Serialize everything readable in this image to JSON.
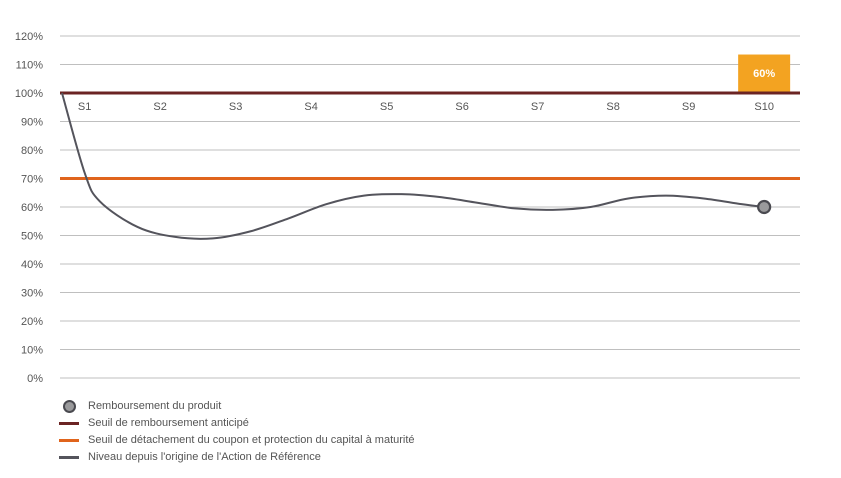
{
  "chart_data": {
    "type": "line",
    "y_ticks": [
      "0%",
      "10%",
      "20%",
      "30%",
      "40%",
      "50%",
      "60%",
      "70%",
      "80%",
      "90%",
      "100%",
      "110%",
      "120%"
    ],
    "ylim": [
      0,
      120
    ],
    "categories": [
      "S1",
      "S2",
      "S3",
      "S4",
      "S5",
      "S6",
      "S7",
      "S8",
      "S9",
      "S10"
    ],
    "series": [
      {
        "name": "Niveau depuis l'origine de l'Action de Référence",
        "color": "#54545c",
        "points": [
          {
            "x": 0.0,
            "y": 100
          },
          {
            "x": 0.3,
            "y": 72
          },
          {
            "x": 0.5,
            "y": 62
          },
          {
            "x": 1.0,
            "y": 53
          },
          {
            "x": 1.5,
            "y": 49.5
          },
          {
            "x": 2.0,
            "y": 49
          },
          {
            "x": 2.5,
            "y": 51.5
          },
          {
            "x": 3.0,
            "y": 56
          },
          {
            "x": 3.5,
            "y": 61
          },
          {
            "x": 4.0,
            "y": 64
          },
          {
            "x": 4.5,
            "y": 64.5
          },
          {
            "x": 5.0,
            "y": 63.5
          },
          {
            "x": 5.5,
            "y": 61.5
          },
          {
            "x": 6.0,
            "y": 59.5
          },
          {
            "x": 6.5,
            "y": 59
          },
          {
            "x": 7.0,
            "y": 60
          },
          {
            "x": 7.5,
            "y": 63
          },
          {
            "x": 8.0,
            "y": 64
          },
          {
            "x": 8.5,
            "y": 63
          },
          {
            "x": 9.0,
            "y": 61
          },
          {
            "x": 9.3,
            "y": 60
          }
        ]
      }
    ],
    "thresholds": [
      {
        "name": "Seuil de remboursement anticipé",
        "value": 100,
        "color": "#6b2423"
      },
      {
        "name": "Seuil de détachement du coupon et protection du capital à maturité",
        "value": 70,
        "color": "#e0641c"
      }
    ],
    "marker": {
      "name": "Remboursement du produit",
      "x": 9.3,
      "y": 60,
      "fill": "#9a9a9c",
      "stroke": "#4a4a50"
    },
    "callout": {
      "label": "60%",
      "category": "S10",
      "color": "#f3a321",
      "text_color": "#ffffff"
    },
    "grid_color": "#aaaaaa",
    "legend": {
      "placement": "bottom-left",
      "items": [
        {
          "kind": "marker",
          "label": "Remboursement du produit"
        },
        {
          "kind": "line",
          "label": "Seuil de remboursement anticipé",
          "color": "#6b2423"
        },
        {
          "kind": "line",
          "label": "Seuil de détachement du coupon et protection du capital à maturité",
          "color": "#e0641c"
        },
        {
          "kind": "line",
          "label": "Niveau depuis l'origine de l'Action de Référence",
          "color": "#54545c"
        }
      ]
    }
  }
}
